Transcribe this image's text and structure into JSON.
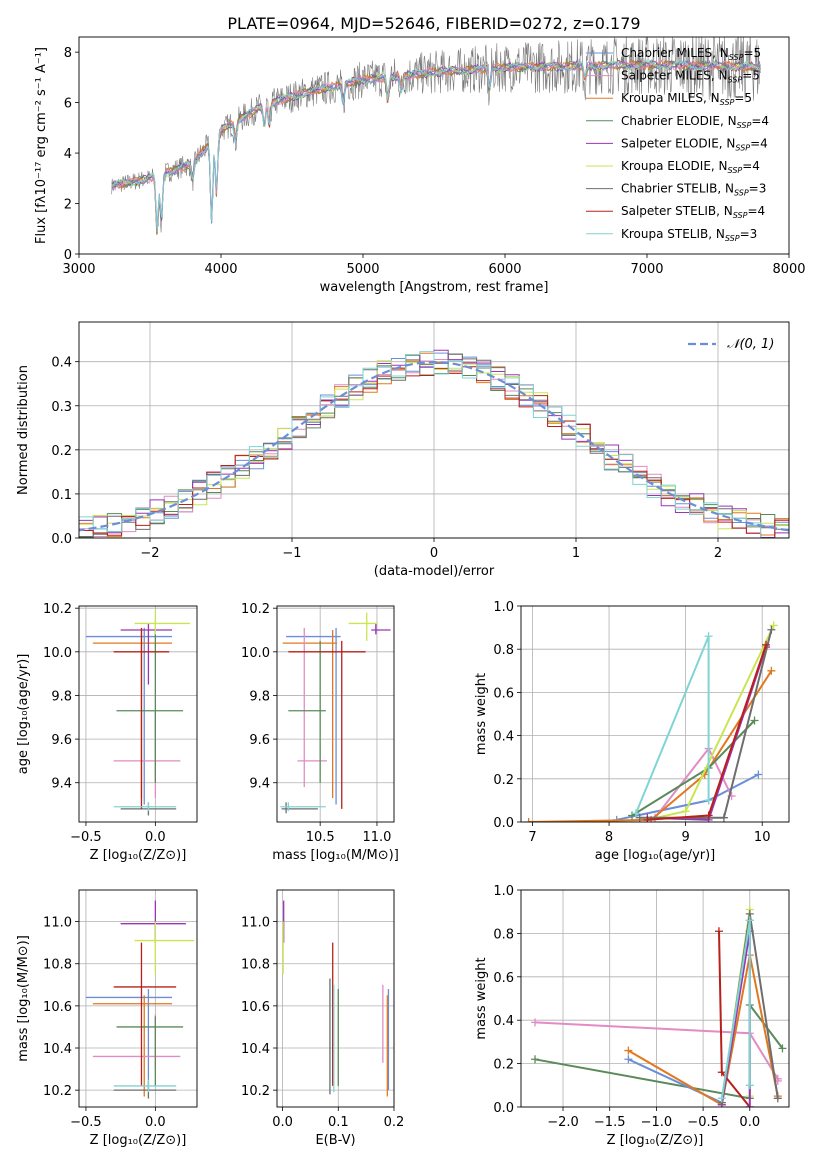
{
  "colors": {
    "Chabrier MILES": "#6a8fd8",
    "Salpeter MILES": "#e28bc4",
    "Kroupa MILES": "#e0781f",
    "Chabrier ELODIE": "#5a8a5a",
    "Salpeter ELODIE": "#9a35b5",
    "Kroupa ELODIE": "#c8e650",
    "Chabrier STELIB": "#6e6e6e",
    "Salpeter STELIB": "#b8201a",
    "Kroupa STELIB": "#80d4d4"
  },
  "chart_data": [
    {
      "type": "line",
      "title": "PLATE=0964, MJD=52646, FIBERID=0272, z=0.179",
      "xlabel": "wavelength [Angstrom, rest frame]",
      "ylabel": "Flux [fλ10⁻¹⁷ erg cm⁻² s⁻¹ A⁻¹]",
      "xlim": [
        3000,
        8000
      ],
      "ylim": [
        0,
        8.6
      ],
      "xticks": [
        3000,
        4000,
        5000,
        6000,
        7000,
        8000
      ],
      "yticks": [
        0,
        2,
        4,
        6,
        8
      ],
      "grid": false,
      "legend_position": "right",
      "legend": [
        {
          "label": "Chabrier MILES, N",
          "sub": "SSP",
          "tail": "=5"
        },
        {
          "label": "Salpeter MILES, N",
          "sub": "SSP",
          "tail": "=5"
        },
        {
          "label": "Kroupa MILES, N",
          "sub": "SSP",
          "tail": "=5"
        },
        {
          "label": "Chabrier ELODIE, N",
          "sub": "SSP",
          "tail": "=4"
        },
        {
          "label": "Salpeter ELODIE, N",
          "sub": "SSP",
          "tail": "=4"
        },
        {
          "label": "Kroupa ELODIE, N",
          "sub": "SSP",
          "tail": "=4"
        },
        {
          "label": "Chabrier STELIB, N",
          "sub": "SSP",
          "tail": "=3"
        },
        {
          "label": "Salpeter STELIB, N",
          "sub": "SSP",
          "tail": "=4"
        },
        {
          "label": "Kroupa STELIB, N",
          "sub": "SSP",
          "tail": "=3"
        }
      ],
      "continuum": {
        "x": [
          3230,
          3500,
          3800,
          4000,
          4300,
          4600,
          5000,
          5500,
          6000,
          6500,
          7000,
          7500,
          7800
        ],
        "y": [
          2.7,
          3.0,
          3.6,
          4.9,
          5.9,
          6.4,
          6.9,
          7.2,
          7.4,
          7.45,
          7.5,
          7.45,
          7.4
        ]
      }
    },
    {
      "type": "line",
      "xlabel": "(data-model)/error",
      "ylabel": "Normed distribution",
      "xlim": [
        -2.5,
        2.5
      ],
      "ylim": [
        0,
        0.49
      ],
      "xticks": [
        -2,
        -1,
        0,
        1,
        2
      ],
      "yticks": [
        0.0,
        0.1,
        0.2,
        0.3,
        0.4
      ],
      "grid": true,
      "legend_position": "top-right",
      "legend": "𝒩(0, 1)",
      "gaussian_color": "#6a8fd8"
    },
    {
      "type": "scatter",
      "xlabel": "Z [log₁₀(Z/Z⊙)]",
      "ylabel": "age  [log₁₀(age/yr)]",
      "xlim": [
        -0.55,
        0.3
      ],
      "ylim": [
        9.22,
        10.21
      ],
      "xticks": [
        -0.5,
        0.0
      ],
      "yticks": [
        9.4,
        9.6,
        9.8,
        10.0,
        10.2
      ],
      "points": [
        {
          "s": "Chabrier MILES",
          "x": -0.08,
          "y": 10.07,
          "x0": -0.5,
          "x1": 0.12,
          "y0": 9.3,
          "y1": 10.11
        },
        {
          "s": "Kroupa MILES",
          "x": -0.1,
          "y": 10.04,
          "x0": -0.45,
          "x1": 0.12,
          "y0": 9.33,
          "y1": 10.1
        },
        {
          "s": "Salpeter MILES",
          "x": 0.0,
          "y": 9.5,
          "x0": -0.3,
          "x1": 0.18,
          "y0": 9.33,
          "y1": 9.72
        },
        {
          "s": "Chabrier ELODIE",
          "x": 0.0,
          "y": 9.73,
          "x0": -0.28,
          "x1": 0.2,
          "y0": 9.4,
          "y1": 10.11
        },
        {
          "s": "Salpeter ELODIE",
          "x": -0.05,
          "y": 10.1,
          "x0": -0.25,
          "x1": 0.12,
          "y0": 9.85,
          "y1": 10.13
        },
        {
          "s": "Kroupa ELODIE",
          "x": 0.0,
          "y": 10.13,
          "x0": -0.15,
          "x1": 0.25,
          "y0": 10.08,
          "y1": 10.19
        },
        {
          "s": "Chabrier STELIB",
          "x": -0.05,
          "y": 9.28,
          "x0": -0.25,
          "x1": 0.15,
          "y0": 9.25,
          "y1": 9.31
        },
        {
          "s": "Salpeter STELIB",
          "x": -0.1,
          "y": 10.0,
          "x0": -0.3,
          "x1": 0.1,
          "y0": 9.28,
          "y1": 10.11
        },
        {
          "s": "Kroupa STELIB",
          "x": -0.05,
          "y": 9.29,
          "x0": -0.3,
          "x1": 0.15,
          "y0": 9.27,
          "y1": 9.31
        }
      ]
    },
    {
      "type": "scatter",
      "xlabel": "mass [log₁₀(M/M⊙)]",
      "xlim": [
        10.12,
        11.15
      ],
      "ylim": [
        9.22,
        10.21
      ],
      "xticks": [
        10.5,
        11.0
      ],
      "yticks": [
        9.4,
        9.6,
        9.8,
        10.0,
        10.2
      ],
      "points": [
        {
          "s": "Chabrier MILES",
          "x": 10.64,
          "y": 10.07,
          "x0": 10.2,
          "x1": 10.68,
          "y0": 9.3,
          "y1": 10.11
        },
        {
          "s": "Kroupa MILES",
          "x": 10.61,
          "y": 10.04,
          "x0": 10.17,
          "x1": 10.65,
          "y0": 9.33,
          "y1": 10.1
        },
        {
          "s": "Salpeter MILES",
          "x": 10.36,
          "y": 9.5,
          "x0": 10.3,
          "x1": 10.56,
          "y0": 9.38,
          "y1": 10.11
        },
        {
          "s": "Chabrier ELODIE",
          "x": 10.5,
          "y": 9.73,
          "x0": 10.22,
          "x1": 10.55,
          "y0": 9.4,
          "y1": 10.05
        },
        {
          "s": "Salpeter ELODIE",
          "x": 10.99,
          "y": 10.1,
          "x0": 10.95,
          "x1": 11.12,
          "y0": 10.08,
          "y1": 10.13
        },
        {
          "s": "Kroupa ELODIE",
          "x": 10.91,
          "y": 10.13,
          "x0": 10.75,
          "x1": 11.0,
          "y0": 10.05,
          "y1": 10.18
        },
        {
          "s": "Chabrier STELIB",
          "x": 10.2,
          "y": 9.28,
          "x0": 10.16,
          "x1": 10.48,
          "y0": 9.26,
          "y1": 9.31
        },
        {
          "s": "Salpeter STELIB",
          "x": 10.69,
          "y": 10.0,
          "x0": 10.22,
          "x1": 10.9,
          "y0": 9.28,
          "y1": 10.05
        },
        {
          "s": "Kroupa STELIB",
          "x": 10.22,
          "y": 9.29,
          "x0": 10.15,
          "x1": 10.55,
          "y0": 9.27,
          "y1": 9.31
        }
      ]
    },
    {
      "type": "line",
      "xlabel": "age  [log₁₀(age/yr)]",
      "ylabel": "mass weight",
      "xlim": [
        6.85,
        10.35
      ],
      "ylim": [
        0,
        1.0
      ],
      "xticks": [
        7,
        8,
        9,
        10
      ],
      "yticks": [
        0.0,
        0.2,
        0.4,
        0.6,
        0.8,
        1.0
      ],
      "series": [
        {
          "s": "Chabrier MILES",
          "x": [
            8.1,
            9.3,
            9.95
          ],
          "y": [
            0.01,
            0.1,
            0.22
          ]
        },
        {
          "s": "Salpeter MILES",
          "x": [
            8.6,
            9.3,
            9.6
          ],
          "y": [
            0.02,
            0.34,
            0.12
          ]
        },
        {
          "s": "Kroupa MILES",
          "x": [
            6.95,
            8.55,
            9.25,
            10.12
          ],
          "y": [
            0.0,
            0.01,
            0.22,
            0.7
          ]
        },
        {
          "s": "Chabrier ELODIE",
          "x": [
            8.3,
            9.3,
            9.9
          ],
          "y": [
            0.03,
            0.25,
            0.47
          ]
        },
        {
          "s": "Salpeter ELODIE",
          "x": [
            8.5,
            9.3,
            10.05
          ],
          "y": [
            0.02,
            0.01,
            0.81
          ]
        },
        {
          "s": "Kroupa ELODIE",
          "x": [
            8.5,
            9.0,
            10.15
          ],
          "y": [
            0.01,
            0.05,
            0.91
          ]
        },
        {
          "s": "Chabrier STELIB",
          "x": [
            8.4,
            9.5,
            10.12
          ],
          "y": [
            0.02,
            0.02,
            0.89
          ]
        },
        {
          "s": "Salpeter STELIB",
          "x": [
            8.5,
            9.3,
            10.05
          ],
          "y": [
            0.01,
            0.03,
            0.82
          ]
        },
        {
          "s": "Kroupa STELIB",
          "x": [
            8.35,
            9.3,
            9.3
          ],
          "y": [
            0.04,
            0.86,
            0.1
          ]
        }
      ]
    },
    {
      "type": "scatter",
      "xlabel": "Z [log₁₀(Z/Z⊙)]",
      "ylabel": "mass [log₁₀(M/M⊙)]",
      "xlim": [
        -0.55,
        0.3
      ],
      "ylim": [
        10.12,
        11.15
      ],
      "xticks": [
        -0.5,
        0.0
      ],
      "yticks": [
        10.2,
        10.4,
        10.6,
        10.8,
        11.0
      ],
      "points": [
        {
          "s": "Chabrier MILES",
          "x": -0.05,
          "y": 10.64,
          "x0": -0.5,
          "x1": 0.12,
          "y0": 10.2,
          "y1": 10.68
        },
        {
          "s": "Kroupa MILES",
          "x": -0.08,
          "y": 10.61,
          "x0": -0.45,
          "x1": 0.12,
          "y0": 10.17,
          "y1": 10.65
        },
        {
          "s": "Salpeter MILES",
          "x": 0.0,
          "y": 10.36,
          "x0": -0.45,
          "x1": 0.18,
          "y0": 10.3,
          "y1": 10.56
        },
        {
          "s": "Chabrier ELODIE",
          "x": 0.0,
          "y": 10.5,
          "x0": -0.28,
          "x1": 0.2,
          "y0": 10.22,
          "y1": 10.55
        },
        {
          "s": "Salpeter ELODIE",
          "x": 0.0,
          "y": 10.99,
          "x0": -0.25,
          "x1": 0.22,
          "y0": 10.9,
          "y1": 11.1
        },
        {
          "s": "Kroupa ELODIE",
          "x": 0.0,
          "y": 10.91,
          "x0": -0.15,
          "x1": 0.28,
          "y0": 10.75,
          "y1": 11.0
        },
        {
          "s": "Chabrier STELIB",
          "x": -0.05,
          "y": 10.2,
          "x0": -0.3,
          "x1": 0.15,
          "y0": 10.16,
          "y1": 10.24
        },
        {
          "s": "Salpeter STELIB",
          "x": -0.1,
          "y": 10.69,
          "x0": -0.3,
          "x1": 0.15,
          "y0": 10.22,
          "y1": 10.9
        },
        {
          "s": "Kroupa STELIB",
          "x": -0.05,
          "y": 10.22,
          "x0": -0.3,
          "x1": 0.15,
          "y0": 10.19,
          "y1": 10.25
        }
      ]
    },
    {
      "type": "scatter",
      "xlabel": "E(B-V)",
      "xlim": [
        -0.01,
        0.2
      ],
      "ylim": [
        10.12,
        11.15
      ],
      "xticks": [
        0.0,
        0.1,
        0.2
      ],
      "yticks": [
        10.2,
        10.4,
        10.6,
        10.8,
        11.0
      ],
      "points": [
        {
          "s": "Chabrier MILES",
          "x": 0.19,
          "y": 10.64,
          "x0": 0.19,
          "x1": 0.19,
          "y0": 10.2,
          "y1": 10.68
        },
        {
          "s": "Kroupa MILES",
          "x": 0.188,
          "y": 10.61,
          "x0": 0.188,
          "x1": 0.188,
          "y0": 10.17,
          "y1": 10.65
        },
        {
          "s": "Salpeter MILES",
          "x": 0.18,
          "y": 10.36,
          "x0": 0.18,
          "x1": 0.18,
          "y0": 10.33,
          "y1": 10.7
        },
        {
          "s": "Chabrier ELODIE",
          "x": 0.1,
          "y": 10.5,
          "x0": 0.1,
          "x1": 0.1,
          "y0": 10.22,
          "y1": 10.68
        },
        {
          "s": "Salpeter ELODIE",
          "x": 0.002,
          "y": 10.99,
          "x0": 0.002,
          "x1": 0.002,
          "y0": 10.9,
          "y1": 11.1
        },
        {
          "s": "Kroupa ELODIE",
          "x": 0.001,
          "y": 10.91,
          "x0": 0.001,
          "x1": 0.001,
          "y0": 10.75,
          "y1": 11.0
        },
        {
          "s": "Chabrier STELIB",
          "x": 0.085,
          "y": 10.2,
          "x0": 0.085,
          "x1": 0.085,
          "y0": 10.18,
          "y1": 10.73
        },
        {
          "s": "Salpeter STELIB",
          "x": 0.09,
          "y": 10.69,
          "x0": 0.09,
          "x1": 0.09,
          "y0": 10.22,
          "y1": 10.9
        },
        {
          "s": "Kroupa STELIB",
          "x": 0.092,
          "y": 10.22,
          "x0": 0.092,
          "x1": 0.092,
          "y0": 10.19,
          "y1": 10.7
        }
      ]
    },
    {
      "type": "line",
      "xlabel": "Z [log₁₀(Z/Z⊙)]",
      "ylabel": "mass weight",
      "xlim": [
        -2.45,
        0.42
      ],
      "ylim": [
        0,
        1.0
      ],
      "xticks": [
        -2.0,
        -1.5,
        -1.0,
        -0.5,
        0.0
      ],
      "yticks": [
        0.0,
        0.2,
        0.4,
        0.6,
        0.8,
        1.0
      ],
      "series": [
        {
          "s": "Salpeter MILES",
          "x": [
            -2.3,
            0.0,
            0.3,
            0.3
          ],
          "y": [
            0.39,
            0.34,
            0.13,
            0.12
          ]
        },
        {
          "s": "Chabrier ELODIE",
          "x": [
            -2.3,
            0.0,
            0.0,
            0.35
          ],
          "y": [
            0.22,
            0.04,
            0.47,
            0.27
          ]
        },
        {
          "s": "Chabrier MILES",
          "x": [
            -1.3,
            -0.3,
            0.0
          ],
          "y": [
            0.22,
            0.02,
            0.86
          ]
        },
        {
          "s": "Kroupa MILES",
          "x": [
            -1.3,
            -0.3,
            0.0,
            0.3
          ],
          "y": [
            0.26,
            0.01,
            0.7,
            0.05
          ]
        },
        {
          "s": "Salpeter STELIB",
          "x": [
            -0.33,
            -0.3,
            0.0
          ],
          "y": [
            0.81,
            0.16,
            0.0
          ]
        },
        {
          "s": "Kroupa ELODIE",
          "x": [
            -0.3,
            0.0,
            0.0
          ],
          "y": [
            0.02,
            0.91,
            0.05
          ]
        },
        {
          "s": "Salpeter ELODIE",
          "x": [
            -0.3,
            0.0,
            0.0
          ],
          "y": [
            0.01,
            0.81,
            0.0
          ]
        },
        {
          "s": "Chabrier STELIB",
          "x": [
            -0.3,
            0.0,
            0.3
          ],
          "y": [
            0.02,
            0.89,
            0.04
          ]
        },
        {
          "s": "Kroupa STELIB",
          "x": [
            -0.3,
            0.0,
            0.0
          ],
          "y": [
            0.04,
            0.86,
            0.1
          ]
        }
      ]
    }
  ]
}
